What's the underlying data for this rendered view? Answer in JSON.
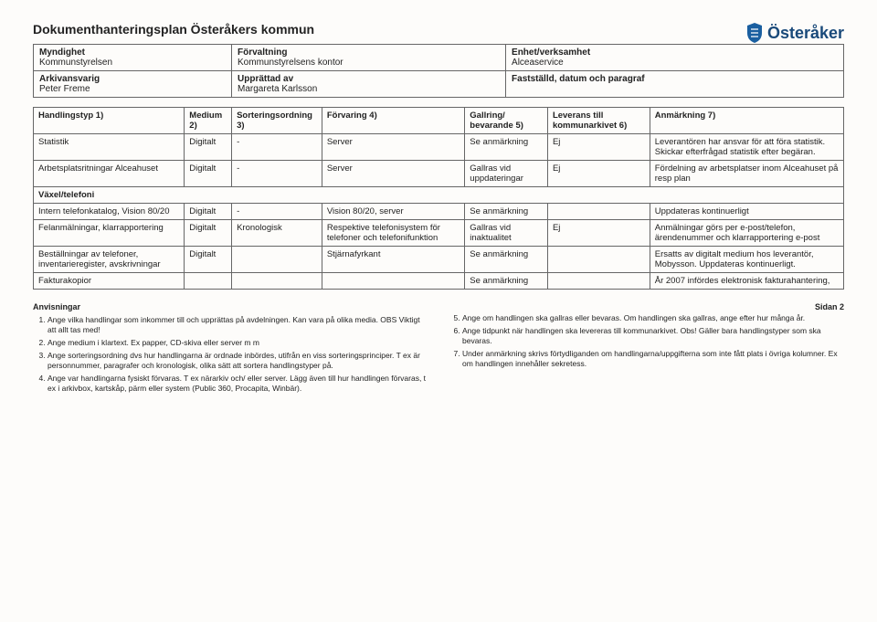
{
  "title": "Dokumenthanteringsplan Österåkers kommun",
  "brand": "Österåker",
  "meta": {
    "r1": [
      {
        "lbl": "Myndighet",
        "val": "Kommunstyrelsen"
      },
      {
        "lbl": "Förvaltning",
        "val": "Kommunstyrelsens kontor"
      },
      {
        "lbl": "Enhet/verksamhet",
        "val": "Alceaservice"
      }
    ],
    "r2": [
      {
        "lbl": "Arkivansvarig",
        "val": "Peter Freme"
      },
      {
        "lbl": "Upprättad av",
        "val": "Margareta Karlsson"
      },
      {
        "lbl": "Fastställd, datum och paragraf",
        "val": ""
      }
    ]
  },
  "columns": [
    "Handlingstyp 1)",
    "Medium 2)",
    "Sorteringsordning 3)",
    "Förvaring 4)",
    "Gallring/ bevarande 5)",
    "Leverans till kommunarkivet 6)",
    "Anmärkning 7)"
  ],
  "rows": [
    {
      "c": [
        "Statistik",
        "Digitalt",
        "-",
        "Server",
        "Se anmärkning",
        "Ej",
        "Leverantören har ansvar för att föra statistik. Skickar efterfrågad statistik efter begäran."
      ]
    },
    {
      "c": [
        "Arbetsplatsritningar Alceahuset",
        "Digitalt",
        "-",
        "Server",
        "Gallras vid uppdateringar",
        "Ej",
        "Fördelning av arbetsplatser inom Alceahuset på resp plan"
      ]
    },
    {
      "section": "Växel/telefoni"
    },
    {
      "c": [
        "Intern telefonkatalog, Vision 80/20",
        "Digitalt",
        "-",
        "Vision 80/20, server",
        "Se anmärkning",
        "",
        "Uppdateras kontinuerligt"
      ]
    },
    {
      "c": [
        "Felanmälningar, klarrapportering",
        "Digitalt",
        "Kronologisk",
        "Respektive telefonisystem för telefoner och telefonifunktion",
        "Gallras vid inaktualitet",
        "Ej",
        "Anmälningar görs per e-post/telefon, ärendenummer och klarrapportering e-post"
      ]
    },
    {
      "spacer": true
    },
    {
      "c": [
        "Beställningar av telefoner, inventarieregister, avskrivningar",
        "Digitalt",
        "",
        "Stjärnafyrkant",
        "Se anmärkning",
        "",
        "Ersatts av digitalt medium hos leverantör, Mobysson. Uppdateras kontinuerligt."
      ]
    },
    {
      "c": [
        "Fakturakopior",
        "",
        "",
        "",
        "Se anmärkning",
        "",
        "År 2007 infördes elektronisk fakturahantering,"
      ]
    }
  ],
  "anvis_label": "Anvisningar",
  "sidan": "Sidan 2",
  "anvis_left": [
    "Ange vilka handlingar som inkommer till och upprättas på avdelningen. Kan vara på olika media. OBS Viktigt att allt tas med!",
    "Ange medium i klartext. Ex papper, CD-skiva eller server m m",
    "Ange sorteringsordning dvs hur handlingarna är ordnade inbördes, utifrån en viss sorteringsprinciper. T ex är personnummer, paragrafer och kronologisk, olika sätt att sortera handlingstyper på.",
    "Ange var handlingarna fysiskt förvaras. T ex närarkiv och/ eller server. Lägg även till hur handlingen förvaras, t ex i arkivbox, kartskåp, pärm eller system (Public 360, Procapita, Winbär)."
  ],
  "anvis_right": [
    "Ange om handlingen ska gallras eller bevaras. Om handlingen ska gallras, ange efter hur många år.",
    "Ange tidpunkt när handlingen ska levereras till kommunarkivet. Obs! Gäller bara handlingstyper som ska bevaras.",
    "Under anmärkning skrivs förtydliganden om handlingarna/uppgifterna som inte fått plats i övriga kolumner. Ex om handlingen innehåller sekretess."
  ]
}
